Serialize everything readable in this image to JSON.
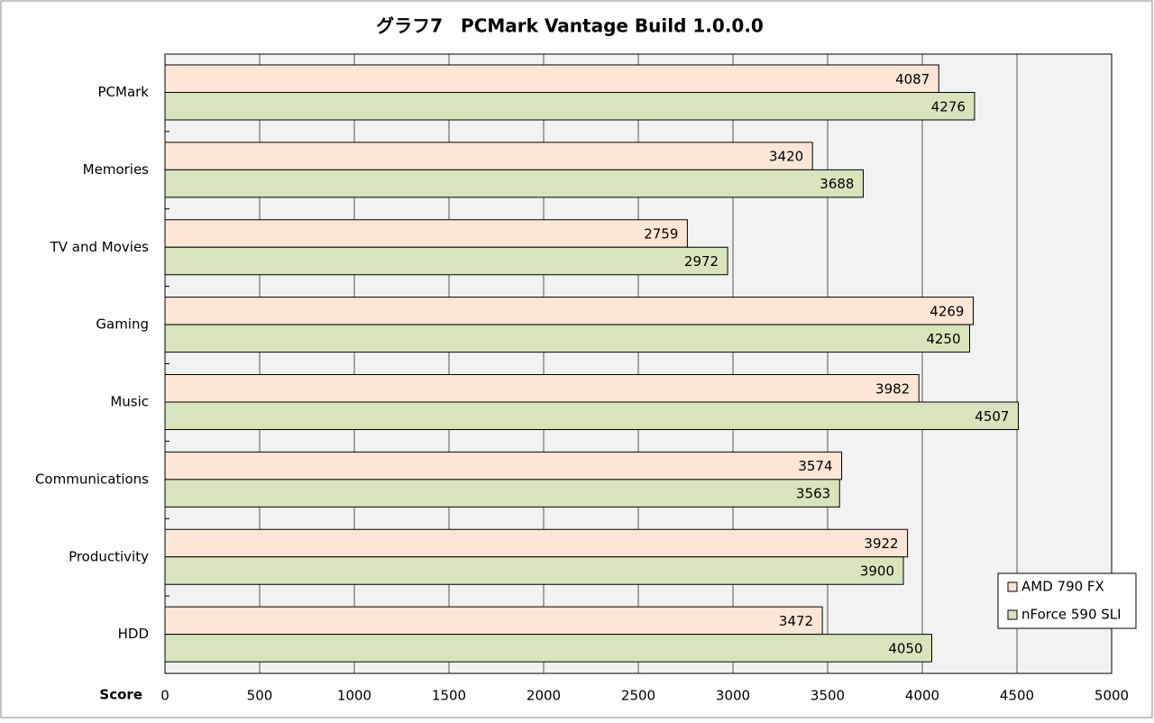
{
  "chart_data": {
    "type": "hbar",
    "title": "グラフ7　PCMark Vantage Build 1.0.0.0",
    "x_label": "Score",
    "categories": [
      "PCMark",
      "Memories",
      "TV and Movies",
      "Gaming",
      "Music",
      "Communications",
      "Productivity",
      "HDD"
    ],
    "series": [
      {
        "name": "AMD 790 FX",
        "color": "#fde6d5",
        "values": [
          4087,
          3420,
          2759,
          4269,
          3982,
          3574,
          3922,
          3472
        ]
      },
      {
        "name": "nForce 590 SLI",
        "color": "#d8e4bc",
        "values": [
          4276,
          3688,
          2972,
          4250,
          4507,
          3563,
          3900,
          4050
        ]
      }
    ],
    "xlim": [
      0,
      5000
    ],
    "xticks": [
      0,
      500,
      1000,
      1500,
      2000,
      2500,
      3000,
      3500,
      4000,
      4500,
      5000
    ],
    "grid": true,
    "legend": "lower right"
  }
}
